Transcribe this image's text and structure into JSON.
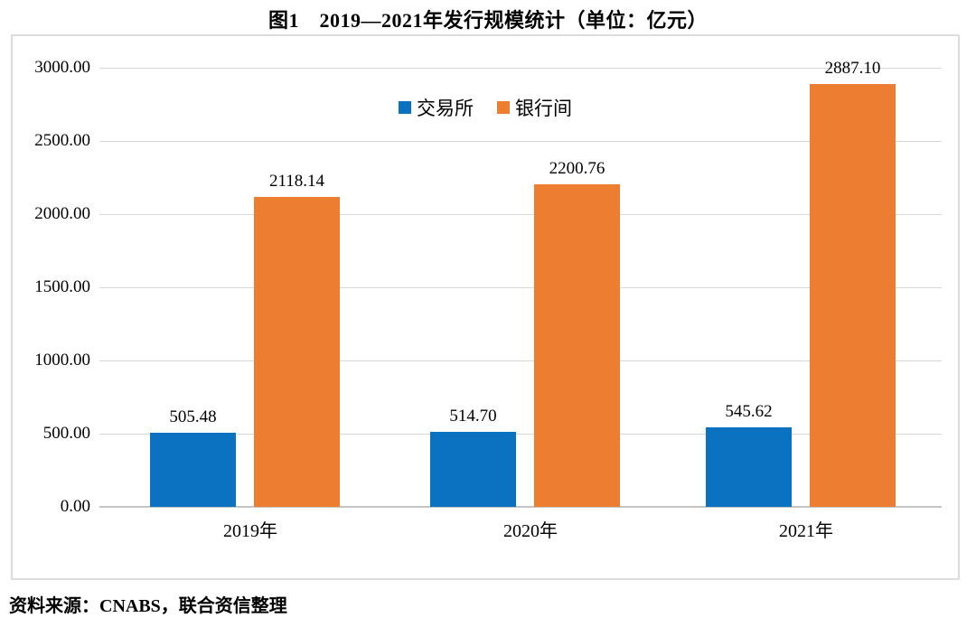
{
  "title": "图1　2019—2021年发行规模统计（单位：亿元）",
  "source": "资料来源：CNABS，联合资信整理",
  "colors": {
    "exchange_blue": "#0B72C2",
    "interbank_orange": "#ED7D31",
    "gridline": "#D8D8D8",
    "axis_line": "#C4C4C4",
    "frame_border": "#DCDCDC",
    "text": "#000000"
  },
  "chart_data": {
    "type": "bar",
    "title": "图1　2019—2021年发行规模统计（单位：亿元）",
    "categories": [
      "2019年",
      "2020年",
      "2021年"
    ],
    "series": [
      {
        "key": "exchange",
        "name": "交易所",
        "color": "#0B72C2",
        "values": [
          505.48,
          514.7,
          545.62
        ],
        "value_labels": [
          "505.48",
          "514.70",
          "545.62"
        ]
      },
      {
        "key": "interbank",
        "name": "银行间",
        "color": "#ED7D31",
        "values": [
          2118.14,
          2200.76,
          2887.1
        ],
        "value_labels": [
          "2118.14",
          "2200.76",
          "2887.10"
        ]
      }
    ],
    "xlabel": "",
    "ylabel": "",
    "ylim": [
      0,
      3000
    ],
    "y_tick_step": 500,
    "y_tick_labels": [
      "0.00",
      "500.00",
      "1000.00",
      "1500.00",
      "2000.00",
      "2500.00",
      "3000.00"
    ],
    "grid": true,
    "legend_position": "top-center",
    "unit": "亿元",
    "source": "资料来源：CNABS，联合资信整理"
  }
}
